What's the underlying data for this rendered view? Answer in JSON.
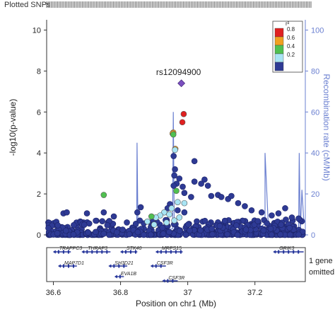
{
  "plotted_label": "Plotted SNPs",
  "lead_snp": "rs12094900",
  "colors": {
    "axis": "#333333",
    "recomb": "#6a7fd0",
    "lead": "#7b4fbf",
    "r2_0_8": "#e02020",
    "r2_0_6": "#f0a020",
    "r2_0_4": "#50c050",
    "r2_0_2": "#a8e4f4",
    "r2_0_0": "#2e3a94",
    "gene": "#24349a",
    "rug": "#666666"
  },
  "icons": {
    "lead": "diamond-icon",
    "snp": "circle-icon"
  },
  "legend": {
    "title": "r²",
    "entries": [
      {
        "label": "0.8",
        "color": "#e02020"
      },
      {
        "label": "0.6",
        "color": "#f0a020"
      },
      {
        "label": "0.4",
        "color": "#50c050"
      },
      {
        "label": "0.2",
        "color": "#a8e4f4"
      },
      {
        "label": "",
        "color": "#2e3a94"
      }
    ]
  },
  "chart_data": {
    "type": "scatter",
    "title": "",
    "xlabel": "Position on chr1 (Mb)",
    "ylabel": "-log10(p-value)",
    "y2label": "Recombination rate (cM/Mb)",
    "xlim": [
      36.58,
      37.35
    ],
    "ylim": [
      0,
      10.5
    ],
    "y2lim": [
      0,
      105
    ],
    "x_ticks": [
      "36.6",
      "36.8",
      "37",
      "37.2"
    ],
    "y_ticks": [
      "0",
      "2",
      "4",
      "6",
      "8",
      "10"
    ],
    "y2_ticks": [
      "0",
      "20",
      "40",
      "60",
      "80",
      "100"
    ],
    "grid": false,
    "legend_position": "top-right",
    "lead": {
      "name": "rs12094900",
      "x": 36.981,
      "y": 7.4
    },
    "highlight_points": [
      {
        "x": 36.988,
        "y": 5.9,
        "ld": "0.8"
      },
      {
        "x": 36.984,
        "y": 5.5,
        "ld": "0.8"
      },
      {
        "x": 36.957,
        "y": 5.0,
        "ld": "0.6"
      },
      {
        "x": 36.955,
        "y": 4.95,
        "ld": "0.6"
      },
      {
        "x": 36.957,
        "y": 4.9,
        "ld": "0.4"
      },
      {
        "x": 36.963,
        "y": 4.2,
        "ld": "0.6"
      },
      {
        "x": 36.962,
        "y": 4.15,
        "ld": "0.2"
      },
      {
        "x": 36.966,
        "y": 2.15,
        "ld": "0.4"
      },
      {
        "x": 36.75,
        "y": 1.95,
        "ld": "0.4"
      },
      {
        "x": 36.97,
        "y": 1.6,
        "ld": "0.2"
      },
      {
        "x": 36.99,
        "y": 1.55,
        "ld": "0.2"
      },
      {
        "x": 36.93,
        "y": 1.1,
        "ld": "0.2"
      },
      {
        "x": 36.945,
        "y": 1.0,
        "ld": "0.2"
      },
      {
        "x": 36.952,
        "y": 1.3,
        "ld": "0.2"
      },
      {
        "x": 36.918,
        "y": 0.95,
        "ld": "0.2"
      },
      {
        "x": 36.905,
        "y": 0.85,
        "ld": "0.2"
      },
      {
        "x": 36.892,
        "y": 0.9,
        "ld": "0.4"
      },
      {
        "x": 36.96,
        "y": 0.7,
        "ld": "0.2"
      },
      {
        "x": 36.975,
        "y": 0.85,
        "ld": "0.2"
      },
      {
        "x": 36.88,
        "y": 0.65,
        "ld": "0.2"
      },
      {
        "x": 36.937,
        "y": 0.6,
        "ld": "0.2"
      },
      {
        "x": 36.9,
        "y": 0.5,
        "ld": "0.2"
      }
    ],
    "blue_points_extra": [
      {
        "x": 36.958,
        "y": 3.85
      },
      {
        "x": 36.962,
        "y": 3.2
      },
      {
        "x": 36.96,
        "y": 2.9
      },
      {
        "x": 36.967,
        "y": 2.5
      },
      {
        "x": 36.958,
        "y": 2.4
      },
      {
        "x": 36.975,
        "y": 2.75
      },
      {
        "x": 36.985,
        "y": 2.35
      },
      {
        "x": 36.99,
        "y": 2.05
      },
      {
        "x": 37.01,
        "y": 1.85
      },
      {
        "x": 37.02,
        "y": 3.6
      },
      {
        "x": 37.02,
        "y": 2.6
      },
      {
        "x": 37.04,
        "y": 2.5
      },
      {
        "x": 37.05,
        "y": 2.7
      },
      {
        "x": 37.06,
        "y": 2.4
      },
      {
        "x": 37.07,
        "y": 1.9
      },
      {
        "x": 37.09,
        "y": 1.95
      },
      {
        "x": 37.1,
        "y": 1.85
      },
      {
        "x": 37.12,
        "y": 1.75
      },
      {
        "x": 37.13,
        "y": 1.9
      },
      {
        "x": 37.15,
        "y": 1.55
      },
      {
        "x": 37.17,
        "y": 1.4
      },
      {
        "x": 37.19,
        "y": 1.2
      },
      {
        "x": 37.22,
        "y": 1.1
      },
      {
        "x": 37.25,
        "y": 0.95
      },
      {
        "x": 37.27,
        "y": 1.05
      },
      {
        "x": 37.29,
        "y": 1.3
      },
      {
        "x": 37.31,
        "y": 0.85
      },
      {
        "x": 37.33,
        "y": 0.8
      },
      {
        "x": 36.99,
        "y": 1.1
      },
      {
        "x": 36.97,
        "y": 1.2
      },
      {
        "x": 36.947,
        "y": 1.5
      },
      {
        "x": 36.94,
        "y": 1.3
      },
      {
        "x": 36.86,
        "y": 1.35
      },
      {
        "x": 36.85,
        "y": 1.1
      },
      {
        "x": 36.63,
        "y": 1.05
      },
      {
        "x": 36.64,
        "y": 1.1
      },
      {
        "x": 36.7,
        "y": 1.05
      },
      {
        "x": 36.75,
        "y": 1.1
      },
      {
        "x": 36.78,
        "y": 0.9
      }
    ],
    "recombination": [
      [
        36.58,
        0.3
      ],
      [
        36.62,
        0.5
      ],
      [
        36.7,
        0.4
      ],
      [
        36.78,
        0.8
      ],
      [
        36.84,
        0.5
      ],
      [
        36.848,
        0.5
      ],
      [
        36.849,
        45
      ],
      [
        36.852,
        0.5
      ],
      [
        36.9,
        1.2
      ],
      [
        36.94,
        2.5
      ],
      [
        36.955,
        3.0
      ],
      [
        36.957,
        60
      ],
      [
        36.96,
        2.0
      ],
      [
        36.99,
        1.5
      ],
      [
        37.0,
        1.2
      ],
      [
        37.06,
        0.8
      ],
      [
        37.12,
        1.0
      ],
      [
        37.2,
        2.0
      ],
      [
        37.22,
        4.0
      ],
      [
        37.23,
        6.0
      ],
      [
        37.23,
        40
      ],
      [
        37.24,
        4.0
      ],
      [
        37.28,
        3.0
      ],
      [
        37.33,
        2.0
      ],
      [
        37.332,
        40
      ],
      [
        37.335,
        1.0
      ],
      [
        37.34,
        22
      ],
      [
        37.345,
        8
      ],
      [
        37.35,
        6
      ]
    ],
    "genes": [
      {
        "name": "TRAPPC3",
        "start": 36.605,
        "end": 36.652,
        "row": 0
      },
      {
        "name": "THRAP3",
        "start": 36.69,
        "end": 36.77,
        "row": 0
      },
      {
        "name": "STK40",
        "start": 36.805,
        "end": 36.85,
        "row": 0
      },
      {
        "name": "MRPS15",
        "start": 36.91,
        "end": 36.985,
        "row": 0
      },
      {
        "name": "GRIK3",
        "start": 37.26,
        "end": 37.345,
        "row": 0
      },
      {
        "name": "MAP7D1",
        "start": 36.62,
        "end": 36.67,
        "row": 1
      },
      {
        "name": "SH3D21",
        "start": 36.77,
        "end": 36.82,
        "row": 1
      },
      {
        "name": "CSF3R",
        "start": 36.895,
        "end": 36.935,
        "row": 1
      },
      {
        "name": "EVA1B",
        "start": 36.788,
        "end": 36.81,
        "row": 2
      },
      {
        "name": "CSF3R",
        "start": 36.93,
        "end": 36.97,
        "row": 3
      }
    ],
    "genes_note": [
      "1 gene",
      "omitted"
    ]
  }
}
